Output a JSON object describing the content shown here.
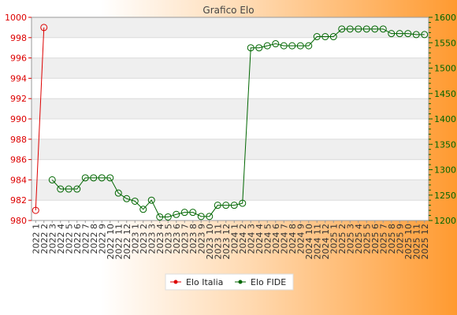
{
  "chart_data": {
    "type": "line",
    "title": "Grafico Elo",
    "categories": [
      "2022 1",
      "2022 2",
      "2022 3",
      "2022 4",
      "2022 5",
      "2022 6",
      "2022 7",
      "2022 8",
      "2022 9",
      "2022 10",
      "2022 11",
      "2022 12",
      "2023 1",
      "2023 2",
      "2023 3",
      "2023 4",
      "2023 5",
      "2023 6",
      "2023 7",
      "2023 8",
      "2023 9",
      "2023 10",
      "2023 11",
      "2023 12",
      "2024 1",
      "2024 2",
      "2024 3",
      "2024 4",
      "2024 5",
      "2024 6",
      "2024 7",
      "2024 8",
      "2024 9",
      "2024 10",
      "2024 11",
      "2024 12",
      "2025 1",
      "2025 2",
      "2025 3",
      "2025 4",
      "2025 5",
      "2025 6",
      "2025 7",
      "2025 8",
      "2025 9",
      "2025 10",
      "2025 11",
      "2025 12"
    ],
    "y_left": {
      "min": 980,
      "max": 1000,
      "ticks": [
        980,
        982,
        984,
        986,
        988,
        990,
        992,
        994,
        996,
        998,
        1000
      ]
    },
    "y_right": {
      "min": 1200,
      "max": 1600,
      "ticks": [
        1200,
        1250,
        1300,
        1350,
        1400,
        1450,
        1500,
        1550,
        1600
      ]
    },
    "grid": true,
    "legend_position": "bottom-center",
    "series": [
      {
        "name": "Elo Italia",
        "axis": "left",
        "color": "#dd0000",
        "points": [
          {
            "x": "2022 1",
            "y": 981
          },
          {
            "x": "2022 2",
            "y": 999
          }
        ]
      },
      {
        "name": "Elo FIDE",
        "axis": "right",
        "color": "#006600",
        "points": [
          {
            "x": "2022 3",
            "y": 1280
          },
          {
            "x": "2022 4",
            "y": 1262
          },
          {
            "x": "2022 5",
            "y": 1262
          },
          {
            "x": "2022 6",
            "y": 1262
          },
          {
            "x": "2022 7",
            "y": 1284
          },
          {
            "x": "2022 8",
            "y": 1284
          },
          {
            "x": "2022 9",
            "y": 1284
          },
          {
            "x": "2022 10",
            "y": 1284
          },
          {
            "x": "2022 11",
            "y": 1254
          },
          {
            "x": "2022 12",
            "y": 1243
          },
          {
            "x": "2023 1",
            "y": 1238
          },
          {
            "x": "2023 2",
            "y": 1222
          },
          {
            "x": "2023 3",
            "y": 1240
          },
          {
            "x": "2023 4",
            "y": 1207
          },
          {
            "x": "2023 5",
            "y": 1207
          },
          {
            "x": "2023 6",
            "y": 1212
          },
          {
            "x": "2023 7",
            "y": 1216
          },
          {
            "x": "2023 8",
            "y": 1216
          },
          {
            "x": "2023 9",
            "y": 1208
          },
          {
            "x": "2023 10",
            "y": 1208
          },
          {
            "x": "2023 11",
            "y": 1230
          },
          {
            "x": "2023 12",
            "y": 1230
          },
          {
            "x": "2024 1",
            "y": 1230
          },
          {
            "x": "2024 2",
            "y": 1234
          },
          {
            "x": "2024 3",
            "y": 1540
          },
          {
            "x": "2024 4",
            "y": 1540
          },
          {
            "x": "2024 5",
            "y": 1544
          },
          {
            "x": "2024 6",
            "y": 1548
          },
          {
            "x": "2024 7",
            "y": 1544
          },
          {
            "x": "2024 8",
            "y": 1544
          },
          {
            "x": "2024 9",
            "y": 1544
          },
          {
            "x": "2024 10",
            "y": 1544
          },
          {
            "x": "2024 11",
            "y": 1562
          },
          {
            "x": "2024 12",
            "y": 1562
          },
          {
            "x": "2025 1",
            "y": 1562
          },
          {
            "x": "2025 2",
            "y": 1577
          },
          {
            "x": "2025 3",
            "y": 1577
          },
          {
            "x": "2025 4",
            "y": 1577
          },
          {
            "x": "2025 5",
            "y": 1577
          },
          {
            "x": "2025 6",
            "y": 1577
          },
          {
            "x": "2025 7",
            "y": 1577
          },
          {
            "x": "2025 8",
            "y": 1568
          },
          {
            "x": "2025 9",
            "y": 1568
          },
          {
            "x": "2025 10",
            "y": 1568
          },
          {
            "x": "2025 11",
            "y": 1566
          },
          {
            "x": "2025 12",
            "y": 1566
          }
        ]
      }
    ]
  }
}
